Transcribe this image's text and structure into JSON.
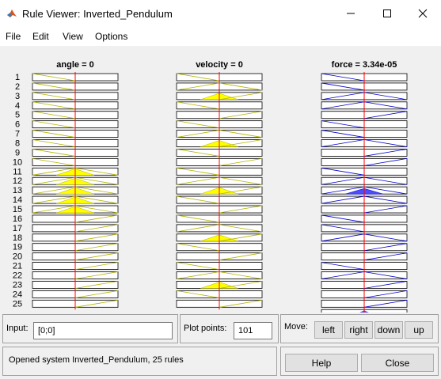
{
  "window": {
    "title": "Rule Viewer: Inverted_Pendulum",
    "icon": "matlab-logo-icon"
  },
  "menu": [
    "File",
    "Edit",
    "View",
    "Options"
  ],
  "plot": {
    "rule_count": 25,
    "columns": [
      {
        "name": "angle",
        "header": "angle = 0",
        "type": "input",
        "value": 0,
        "range": [
          -1,
          1
        ]
      },
      {
        "name": "velocity",
        "header": "velocity = 0",
        "type": "input",
        "value": 0,
        "range": [
          -1,
          1
        ]
      },
      {
        "name": "force",
        "header": "force = 3.34e-05",
        "type": "output",
        "value": 3.34e-05,
        "range": [
          -1,
          1
        ]
      }
    ],
    "rule_labels": [
      "1",
      "2",
      "3",
      "4",
      "5",
      "6",
      "7",
      "8",
      "9",
      "10",
      "11",
      "12",
      "13",
      "14",
      "15",
      "16",
      "17",
      "18",
      "19",
      "20",
      "21",
      "22",
      "23",
      "24",
      "25"
    ],
    "colors": {
      "input_membership": "#b3b300",
      "input_fill": "#ffff00",
      "output_membership": "#0000cc",
      "output_fill": "#4d4dff",
      "value_line": "#ff0000"
    }
  },
  "input_panel": {
    "label": "Input:",
    "value": "[0;0]"
  },
  "plot_points": {
    "label": "Plot points:",
    "value": "101"
  },
  "move": {
    "label": "Move:",
    "buttons": [
      "left",
      "right",
      "down",
      "up"
    ]
  },
  "status": {
    "message": "Opened system Inverted_Pendulum, 25 rules"
  },
  "buttons": {
    "help": "Help",
    "close": "Close"
  }
}
